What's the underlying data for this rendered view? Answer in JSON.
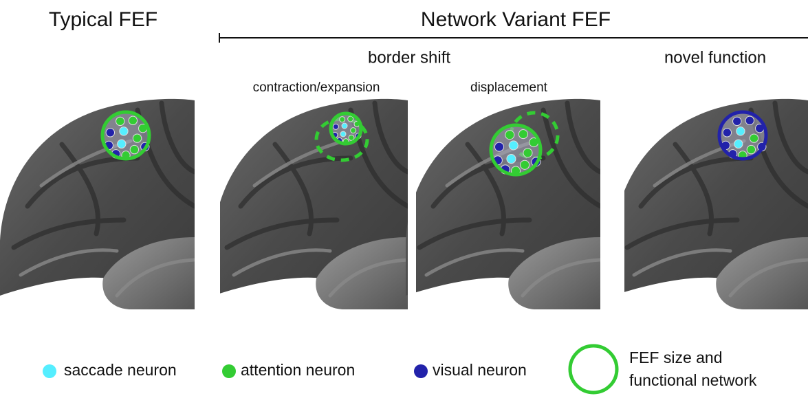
{
  "header": {
    "left_title": "Typical FEF",
    "right_title": "Network Variant FEF"
  },
  "panels": {
    "border_shift": "border shift",
    "novel_function": "novel function",
    "contraction": "contraction/expansion",
    "displacement": "displacement"
  },
  "legend": {
    "saccade": "saccade neuron",
    "attention": "attention neuron",
    "visual": "visual neuron",
    "fef_line1": "FEF size and",
    "fef_line2": "functional network"
  }
}
